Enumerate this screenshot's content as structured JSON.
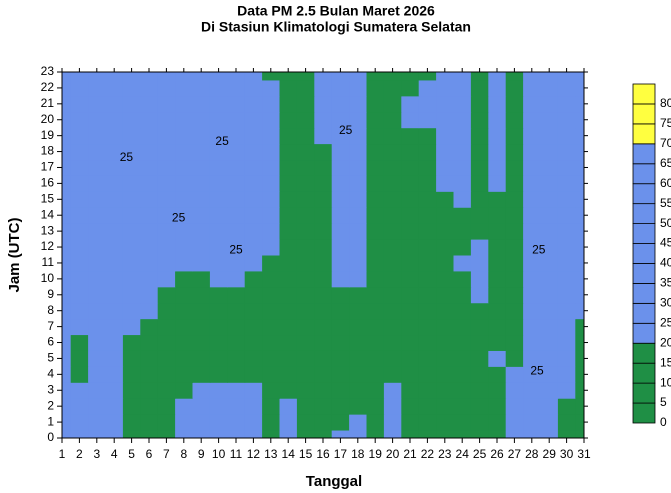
{
  "chart_data": {
    "type": "contour",
    "title": "Data PM 2.5 Bulan Maret 2026",
    "subtitle": "Di Stasiun Klimatologi Sumatera Selatan",
    "x_label": "Tanggal",
    "y_label": "Jam (UTC)",
    "x": [
      1,
      2,
      3,
      4,
      5,
      6,
      7,
      8,
      9,
      10,
      11,
      12,
      13,
      14,
      15,
      16,
      17,
      18,
      19,
      20,
      21,
      22,
      23,
      24,
      25,
      26,
      27,
      28,
      29,
      30,
      31
    ],
    "y": [
      0,
      1,
      2,
      3,
      4,
      5,
      6,
      7,
      8,
      9,
      10,
      11,
      12,
      13,
      14,
      15,
      16,
      17,
      18,
      19,
      20,
      21,
      22,
      23
    ],
    "z": [
      [
        30,
        35,
        30,
        28,
        18,
        15,
        16,
        22,
        25,
        30,
        40,
        30,
        18,
        22,
        17,
        15,
        22,
        40,
        18,
        24,
        15,
        12,
        14,
        16,
        17,
        16,
        22,
        28,
        30,
        18,
        17
      ],
      [
        32,
        30,
        28,
        25,
        18,
        15,
        16,
        22,
        26,
        32,
        38,
        28,
        18,
        22,
        17,
        15,
        18,
        30,
        18,
        24,
        15,
        12,
        14,
        16,
        17,
        16,
        22,
        28,
        30,
        18,
        17
      ],
      [
        30,
        28,
        26,
        24,
        18,
        15,
        16,
        20,
        24,
        28,
        30,
        26,
        18,
        20,
        16,
        14,
        16,
        18,
        16,
        22,
        14,
        12,
        14,
        16,
        17,
        16,
        22,
        26,
        28,
        18,
        17
      ],
      [
        28,
        26,
        24,
        22,
        17,
        14,
        15,
        18,
        20,
        22,
        22,
        21,
        17,
        16,
        15,
        14,
        15,
        16,
        15,
        21,
        14,
        12,
        14,
        15,
        16,
        17,
        22,
        26,
        30,
        20,
        18
      ],
      [
        26,
        18,
        24,
        22,
        17,
        14,
        14,
        16,
        18,
        18,
        17,
        16,
        16,
        15,
        14,
        13,
        14,
        15,
        14,
        16,
        14,
        12,
        14,
        15,
        16,
        17,
        22,
        30,
        35,
        22,
        18
      ],
      [
        22,
        17,
        24,
        23,
        18,
        14,
        14,
        15,
        16,
        16,
        15,
        15,
        16,
        14,
        13,
        13,
        14,
        15,
        14,
        15,
        14,
        12,
        14,
        15,
        16,
        22,
        18,
        26,
        38,
        22,
        18
      ],
      [
        24,
        18,
        26,
        24,
        19,
        15,
        14,
        15,
        16,
        16,
        15,
        15,
        16,
        14,
        13,
        13,
        14,
        15,
        14,
        15,
        14,
        12,
        14,
        15,
        17,
        16,
        17,
        22,
        30,
        22,
        18
      ],
      [
        26,
        22,
        28,
        25,
        22,
        17,
        15,
        15,
        16,
        16,
        15,
        15,
        16,
        14,
        13,
        13,
        14,
        15,
        14,
        15,
        14,
        12,
        14,
        15,
        17,
        16,
        17,
        21,
        26,
        23,
        18
      ],
      [
        28,
        25,
        28,
        26,
        22,
        20,
        16,
        16,
        17,
        17,
        16,
        16,
        16,
        14,
        13,
        14,
        15,
        16,
        14,
        15,
        14,
        12,
        14,
        15,
        17,
        16,
        17,
        21,
        25,
        24,
        20
      ],
      [
        30,
        26,
        28,
        26,
        24,
        21,
        17,
        17,
        18,
        18,
        17,
        17,
        17,
        14,
        13,
        15,
        17,
        18,
        14,
        15,
        14,
        12,
        14,
        16,
        21,
        16,
        17,
        21,
        24,
        24,
        22
      ],
      [
        34,
        28,
        28,
        26,
        24,
        22,
        20,
        18,
        18,
        20,
        22,
        19,
        17,
        14,
        14,
        17,
        20,
        21,
        14,
        15,
        14,
        12,
        14,
        18,
        22,
        17,
        17,
        21,
        25,
        25,
        24
      ],
      [
        40,
        30,
        28,
        26,
        25,
        23,
        21,
        20,
        22,
        24,
        42,
        22,
        18,
        15,
        15,
        18,
        22,
        22,
        15,
        15,
        14,
        13,
        15,
        20,
        23,
        18,
        18,
        22,
        26,
        26,
        25
      ],
      [
        42,
        32,
        28,
        26,
        26,
        24,
        22,
        21,
        22,
        24,
        28,
        23,
        20,
        15,
        15,
        18,
        24,
        23,
        16,
        15,
        14,
        13,
        15,
        19,
        22,
        18,
        19,
        22,
        28,
        27,
        25
      ],
      [
        40,
        32,
        28,
        26,
        26,
        25,
        24,
        23,
        24,
        24,
        26,
        24,
        21,
        15,
        15,
        18,
        26,
        24,
        16,
        15,
        14,
        13,
        15,
        17,
        18,
        17,
        18,
        24,
        30,
        28,
        26
      ],
      [
        45,
        32,
        28,
        27,
        27,
        30,
        32,
        34,
        30,
        26,
        26,
        25,
        22,
        15,
        15,
        18,
        27,
        24,
        16,
        15,
        14,
        13,
        16,
        17,
        17,
        17,
        18,
        25,
        30,
        30,
        27
      ],
      [
        50,
        34,
        30,
        28,
        25,
        27,
        29,
        30,
        28,
        27,
        26,
        25,
        22,
        15,
        15,
        18,
        28,
        24,
        16,
        15,
        14,
        13,
        18,
        20,
        17,
        17,
        18,
        26,
        32,
        32,
        28
      ],
      [
        45,
        34,
        32,
        32,
        26,
        26,
        26,
        26,
        26,
        27,
        26,
        25,
        22,
        15,
        15,
        17,
        32,
        24,
        16,
        15,
        14,
        14,
        22,
        22,
        17,
        20,
        18,
        28,
        40,
        32,
        28
      ],
      [
        35,
        36,
        34,
        38,
        28,
        27,
        26,
        26,
        26,
        28,
        27,
        26,
        22,
        15,
        15,
        17,
        30,
        24,
        16,
        15,
        14,
        15,
        24,
        23,
        17,
        21,
        18,
        26,
        32,
        30,
        28
      ],
      [
        32,
        34,
        34,
        42,
        30,
        28,
        27,
        26,
        26,
        30,
        28,
        26,
        21,
        15,
        15,
        18,
        26,
        24,
        16,
        15,
        14,
        16,
        28,
        24,
        17,
        23,
        18,
        26,
        32,
        30,
        28
      ],
      [
        34,
        36,
        34,
        36,
        30,
        28,
        27,
        27,
        28,
        36,
        28,
        26,
        21,
        15,
        16,
        20,
        30,
        24,
        17,
        15,
        15,
        18,
        35,
        26,
        18,
        27,
        18,
        28,
        38,
        30,
        28
      ],
      [
        38,
        42,
        36,
        32,
        28,
        27,
        27,
        27,
        28,
        30,
        28,
        26,
        21,
        15,
        16,
        24,
        42,
        25,
        18,
        15,
        20,
        20,
        40,
        27,
        18,
        24,
        18,
        26,
        34,
        30,
        28
      ],
      [
        34,
        38,
        34,
        34,
        28,
        26,
        27,
        28,
        28,
        30,
        28,
        26,
        20,
        15,
        16,
        26,
        34,
        24,
        18,
        15,
        22,
        20,
        38,
        26,
        18,
        26,
        18,
        25,
        32,
        29,
        28
      ],
      [
        32,
        34,
        32,
        36,
        28,
        26,
        27,
        28,
        28,
        32,
        30,
        26,
        20,
        15,
        16,
        24,
        30,
        22,
        17,
        15,
        18,
        20,
        34,
        25,
        18,
        24,
        18,
        24,
        30,
        28,
        26
      ],
      [
        30,
        32,
        30,
        32,
        28,
        26,
        27,
        28,
        28,
        34,
        30,
        25,
        19,
        15,
        16,
        22,
        28,
        21,
        17,
        15,
        17,
        19,
        30,
        24,
        17,
        22,
        18,
        24,
        28,
        27,
        25
      ]
    ],
    "xlim": [
      1,
      31
    ],
    "ylim": [
      0,
      23
    ],
    "xticks": [
      1,
      2,
      3,
      4,
      5,
      6,
      7,
      8,
      9,
      10,
      11,
      12,
      13,
      14,
      15,
      16,
      17,
      18,
      19,
      20,
      21,
      22,
      23,
      24,
      25,
      26,
      27,
      28,
      29,
      30,
      31
    ],
    "yticks": [
      0,
      1,
      2,
      3,
      4,
      5,
      6,
      7,
      8,
      9,
      10,
      11,
      12,
      13,
      14,
      15,
      16,
      17,
      18,
      19,
      20,
      21,
      22,
      23
    ],
    "levels": [
      0,
      5,
      10,
      15,
      20,
      25,
      30,
      35,
      40,
      45,
      50,
      55,
      60,
      65,
      70,
      75,
      80,
      85
    ],
    "level_colors": [
      "#1f8f45",
      "#1f8f45",
      "#1f8f45",
      "#1f8f45",
      "#6b91eb",
      "#6b91eb",
      "#6b91eb",
      "#6b91eb",
      "#6b91eb",
      "#6b91eb",
      "#6b91eb",
      "#6b91eb",
      "#6b91eb",
      "#6b91eb",
      "#ffff40",
      "#ffff40",
      "#ffff40"
    ],
    "colorbar_ticks": [
      0,
      5,
      10,
      15,
      20,
      25,
      30,
      35,
      40,
      45,
      50,
      55,
      60,
      65,
      70,
      75,
      80
    ],
    "contour_labels": [
      {
        "value": 25,
        "x": 4.7,
        "y": 17.6
      },
      {
        "value": 25,
        "x": 10.2,
        "y": 18.6
      },
      {
        "value": 25,
        "x": 7.7,
        "y": 13.8
      },
      {
        "value": 25,
        "x": 11,
        "y": 11.8
      },
      {
        "value": 25,
        "x": 17.3,
        "y": 19.3
      },
      {
        "value": 25,
        "x": 28.4,
        "y": 11.8
      },
      {
        "value": 25,
        "x": 28.3,
        "y": 4.2
      }
    ]
  }
}
